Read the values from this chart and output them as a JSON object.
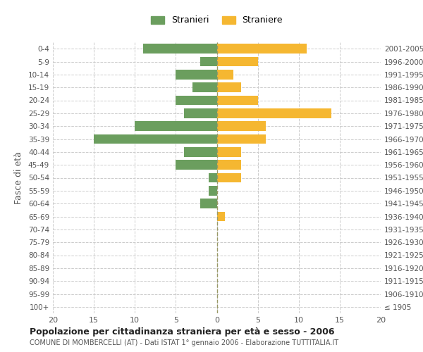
{
  "age_groups": [
    "100+",
    "95-99",
    "90-94",
    "85-89",
    "80-84",
    "75-79",
    "70-74",
    "65-69",
    "60-64",
    "55-59",
    "50-54",
    "45-49",
    "40-44",
    "35-39",
    "30-34",
    "25-29",
    "20-24",
    "15-19",
    "10-14",
    "5-9",
    "0-4"
  ],
  "birth_years": [
    "≤ 1905",
    "1906-1910",
    "1911-1915",
    "1916-1920",
    "1921-1925",
    "1926-1930",
    "1931-1935",
    "1936-1940",
    "1941-1945",
    "1946-1950",
    "1951-1955",
    "1956-1960",
    "1961-1965",
    "1966-1970",
    "1971-1975",
    "1976-1980",
    "1981-1985",
    "1986-1990",
    "1991-1995",
    "1996-2000",
    "2001-2005"
  ],
  "males": [
    0,
    0,
    0,
    0,
    0,
    0,
    0,
    0,
    2,
    1,
    1,
    5,
    4,
    15,
    10,
    4,
    5,
    3,
    5,
    2,
    9
  ],
  "females": [
    0,
    0,
    0,
    0,
    0,
    0,
    0,
    1,
    0,
    0,
    3,
    3,
    3,
    6,
    6,
    14,
    5,
    3,
    2,
    5,
    11
  ],
  "male_color": "#6b9e5e",
  "female_color": "#f5b731",
  "xlim": 20,
  "title": "Popolazione per cittadinanza straniera per età e sesso - 2006",
  "subtitle": "COMUNE DI MOMBERCELLI (AT) - Dati ISTAT 1° gennaio 2006 - Elaborazione TUTTITALIA.IT",
  "ylabel_left": "Fasce di età",
  "legend_male": "Stranieri",
  "legend_female": "Straniere",
  "bg_color": "#ffffff",
  "grid_color": "#cccccc",
  "tick_label_color": "#555555",
  "axis_label_color": "#555555"
}
